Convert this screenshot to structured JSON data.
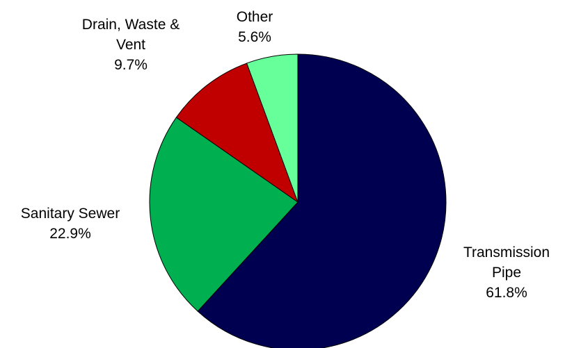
{
  "chart_data": {
    "type": "pie",
    "start_angle_deg": 0,
    "direction": "clockwise",
    "slices": [
      {
        "name": "Transmission Pipe",
        "label_lines": [
          "Transmission",
          "Pipe",
          "61.8%"
        ],
        "value": 61.8,
        "color": "#000050"
      },
      {
        "name": "Sanitary Sewer",
        "label_lines": [
          "Sanitary Sewer",
          "22.9%"
        ],
        "value": 22.9,
        "color": "#00B050"
      },
      {
        "name": "Drain, Waste & Vent",
        "label_lines": [
          "Drain, Waste &",
          "Vent",
          "9.7%"
        ],
        "value": 9.7,
        "color": "#C00000"
      },
      {
        "name": "Other",
        "label_lines": [
          "Other",
          "5.6%"
        ],
        "value": 5.6,
        "color": "#66FF99"
      }
    ]
  }
}
